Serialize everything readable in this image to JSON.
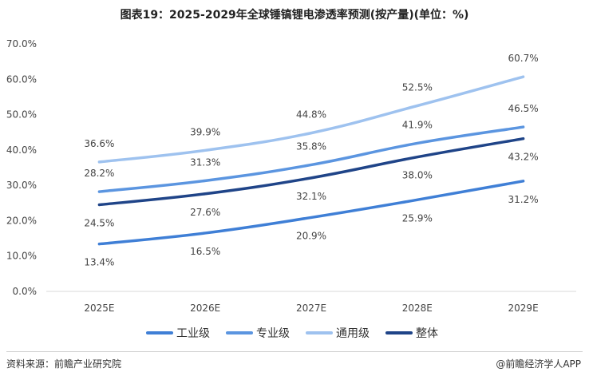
{
  "title": "图表19：2025-2029年全球锤镐锂电渗透率预测(按产量)(单位：%)",
  "source": "资料来源：前瞻产业研究院",
  "brand": "@前瞻经济学人APP",
  "chart_data": {
    "type": "line",
    "title": "图表19：2025-2029年全球锤镐锂电渗透率预测(按产量)(单位：%)",
    "xlabel": "",
    "ylabel": "",
    "categories": [
      "2025E",
      "2026E",
      "2027E",
      "2028E",
      "2029E"
    ],
    "ylim": [
      0,
      70
    ],
    "yticks": [
      "0.0%",
      "10.0%",
      "20.0%",
      "30.0%",
      "40.0%",
      "50.0%",
      "60.0%",
      "70.0%"
    ],
    "legend_position": "bottom",
    "grid": false,
    "series": [
      {
        "name": "工业级",
        "color": "#3f7fd6",
        "values": [
          13.4,
          16.5,
          20.9,
          25.9,
          31.2
        ],
        "labels": [
          "13.4%",
          "16.5%",
          "20.9%",
          "25.9%",
          "31.2%"
        ]
      },
      {
        "name": "专业级",
        "color": "#5b95e0",
        "values": [
          28.2,
          31.3,
          35.8,
          41.9,
          46.5
        ],
        "labels": [
          "28.2%",
          "31.3%",
          "35.8%",
          "41.9%",
          "46.5%"
        ]
      },
      {
        "name": "通用级",
        "color": "#9ec2ef",
        "values": [
          36.6,
          39.9,
          44.8,
          52.5,
          60.7
        ],
        "labels": [
          "36.6%",
          "39.9%",
          "44.8%",
          "52.5%",
          "60.7%"
        ]
      },
      {
        "name": "整体",
        "color": "#1f4488",
        "values": [
          24.5,
          27.6,
          32.1,
          38.0,
          43.2
        ],
        "labels": [
          "24.5%",
          "27.6%",
          "32.1%",
          "38.0%",
          "43.2%"
        ]
      }
    ]
  }
}
